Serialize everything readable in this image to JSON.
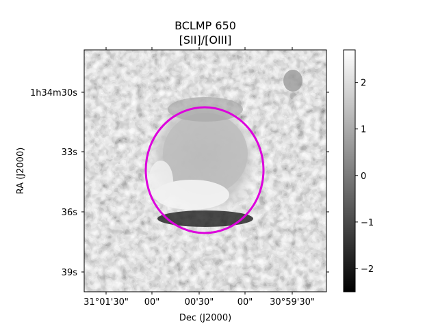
{
  "title": "BCLMP 650",
  "subtitle": "[SII]/[OIII]",
  "image": {
    "ra_ticks": [
      "1h34m30s",
      "33s",
      "36s",
      "39s"
    ],
    "dec_ticks": [
      "31°01'30\"",
      "00\"",
      "00'30\"",
      "00\"",
      "30°59'30\""
    ],
    "xlabel": "Dec (J2000)",
    "ylabel": "RA (J2000)",
    "region_color": "#dd00dd"
  },
  "colorbar": {
    "ticks": [
      "2",
      "1",
      "0",
      "−1",
      "−2"
    ],
    "tick_values": [
      2,
      1,
      0,
      -1,
      -2
    ],
    "vmin": -2.5,
    "vmax": 2.7
  }
}
